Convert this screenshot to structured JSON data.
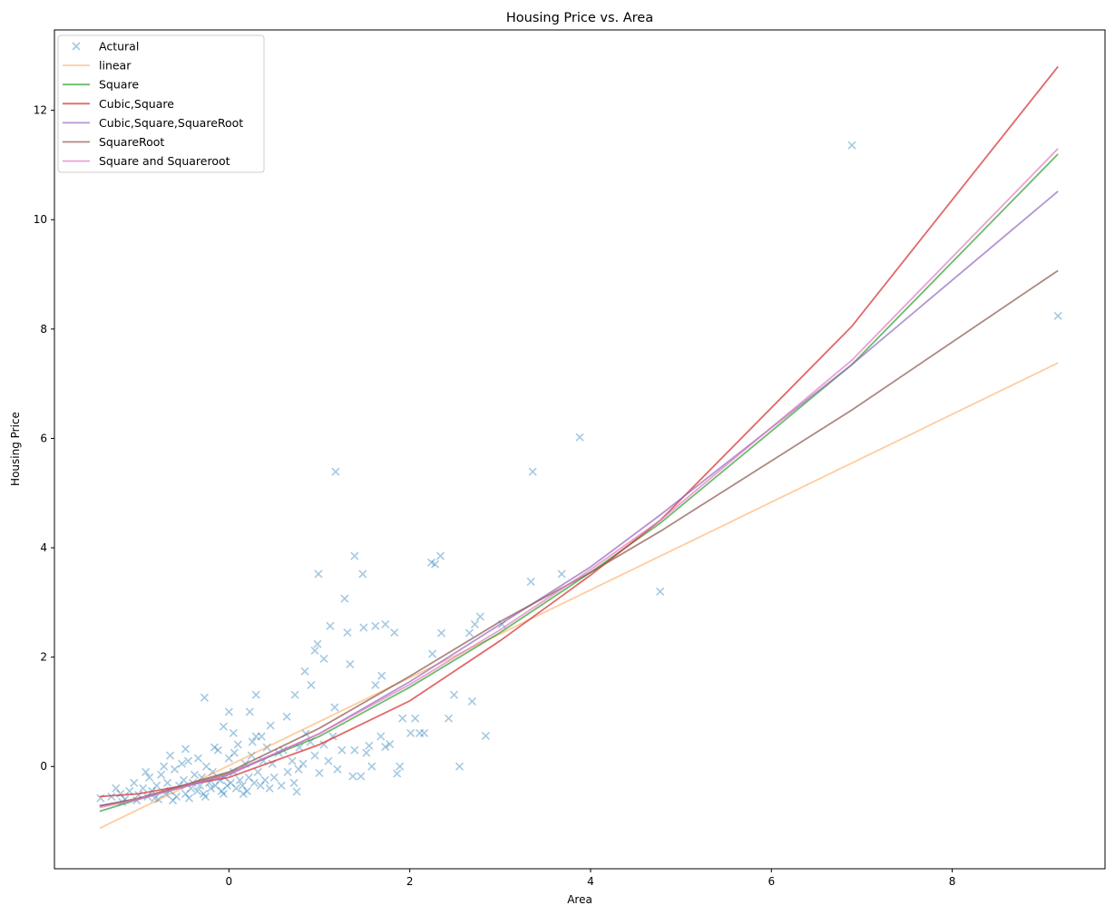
{
  "chart_data": {
    "type": "scatter",
    "title": "Housing Price vs. Area",
    "xlabel": "Area",
    "ylabel": "Housing Price",
    "xlim": [
      -1.93,
      9.69
    ],
    "ylim": [
      -1.87,
      13.47
    ],
    "xticks": [
      0,
      2,
      4,
      6,
      8
    ],
    "yticks": [
      0,
      2,
      4,
      6,
      8,
      10,
      12
    ],
    "grid": false,
    "legend_position": "top-left",
    "scatter": {
      "name": "Actural",
      "color": "#1f77b4",
      "marker": "x",
      "points": [
        [
          6.89,
          11.36
        ],
        [
          9.17,
          8.24
        ],
        [
          3.88,
          6.02
        ],
        [
          3.36,
          5.39
        ],
        [
          1.18,
          5.39
        ],
        [
          4.77,
          3.2
        ],
        [
          1.39,
          3.85
        ],
        [
          2.34,
          3.85
        ],
        [
          2.24,
          3.73
        ],
        [
          2.28,
          3.7
        ],
        [
          0.99,
          3.52
        ],
        [
          1.48,
          3.52
        ],
        [
          3.68,
          3.52
        ],
        [
          3.34,
          3.38
        ],
        [
          1.28,
          3.07
        ],
        [
          1.12,
          2.57
        ],
        [
          1.31,
          2.45
        ],
        [
          1.49,
          2.54
        ],
        [
          1.62,
          2.57
        ],
        [
          1.73,
          2.6
        ],
        [
          1.83,
          2.45
        ],
        [
          2.35,
          2.44
        ],
        [
          2.66,
          2.44
        ],
        [
          2.72,
          2.6
        ],
        [
          2.78,
          2.74
        ],
        [
          3.02,
          2.6
        ],
        [
          0.98,
          2.24
        ],
        [
          0.95,
          2.12
        ],
        [
          1.05,
          1.97
        ],
        [
          1.34,
          1.87
        ],
        [
          2.25,
          2.06
        ],
        [
          0.84,
          1.74
        ],
        [
          1.69,
          1.66
        ],
        [
          1.62,
          1.49
        ],
        [
          0.91,
          1.49
        ],
        [
          2.69,
          1.19
        ],
        [
          2.49,
          1.31
        ],
        [
          -0.27,
          1.26
        ],
        [
          0.3,
          1.31
        ],
        [
          0.73,
          1.31
        ],
        [
          1.17,
          1.08
        ],
        [
          0,
          1.0
        ],
        [
          0.23,
          1.0
        ],
        [
          0.64,
          0.91
        ],
        [
          1.92,
          0.88
        ],
        [
          2.06,
          0.88
        ],
        [
          2.43,
          0.88
        ],
        [
          2.84,
          0.56
        ],
        [
          2.11,
          0.61
        ],
        [
          2.16,
          0.61
        ],
        [
          2.01,
          0.61
        ],
        [
          1.68,
          0.55
        ],
        [
          1.73,
          0.36
        ],
        [
          1.78,
          0.41
        ],
        [
          1.55,
          0.38
        ],
        [
          1.52,
          0.25
        ],
        [
          1.39,
          0.3
        ],
        [
          1.25,
          0.3
        ],
        [
          1.58,
          0.0
        ],
        [
          2.55,
          0.0
        ],
        [
          1.89,
          0.0
        ],
        [
          1.86,
          -0.13
        ],
        [
          1.37,
          -0.18
        ],
        [
          1.46,
          -0.18
        ],
        [
          1.0,
          -0.12
        ],
        [
          0.77,
          -0.05
        ],
        [
          0.75,
          -0.46
        ],
        [
          0.05,
          0.61
        ],
        [
          -0.06,
          0.73
        ],
        [
          0.46,
          0.75
        ],
        [
          -0.48,
          0.32
        ],
        [
          -0.65,
          0.2
        ],
        [
          -1.42,
          -0.58
        ],
        [
          -1.3,
          -0.55
        ],
        [
          -1.2,
          -0.5
        ],
        [
          -1.15,
          -0.6
        ],
        [
          -1.1,
          -0.45
        ],
        [
          -1.05,
          -0.3
        ],
        [
          -1.0,
          -0.52
        ],
        [
          -0.95,
          -0.4
        ],
        [
          -0.9,
          -0.55
        ],
        [
          -0.88,
          -0.2
        ],
        [
          -0.85,
          -0.45
        ],
        [
          -0.8,
          -0.35
        ],
        [
          -0.78,
          -0.6
        ],
        [
          -0.75,
          -0.15
        ],
        [
          -0.7,
          -0.5
        ],
        [
          -0.68,
          -0.3
        ],
        [
          -0.65,
          -0.45
        ],
        [
          -0.6,
          -0.05
        ],
        [
          -0.58,
          -0.55
        ],
        [
          -0.55,
          -0.35
        ],
        [
          -0.5,
          -0.25
        ],
        [
          -0.48,
          -0.5
        ],
        [
          -0.45,
          0.1
        ],
        [
          -0.42,
          -0.4
        ],
        [
          -0.4,
          -0.3
        ],
        [
          -0.38,
          -0.15
        ],
        [
          -0.35,
          -0.45
        ],
        [
          -0.32,
          -0.35
        ],
        [
          -0.3,
          -0.2
        ],
        [
          -0.28,
          -0.5
        ],
        [
          -0.25,
          0.0
        ],
        [
          -0.22,
          -0.3
        ],
        [
          -0.2,
          -0.4
        ],
        [
          -0.18,
          -0.1
        ],
        [
          -0.15,
          -0.35
        ],
        [
          -0.12,
          0.3
        ],
        [
          -0.1,
          -0.25
        ],
        [
          -0.08,
          -0.45
        ],
        [
          -0.05,
          -0.2
        ],
        [
          -0.02,
          -0.35
        ],
        [
          0.0,
          0.15
        ],
        [
          0.02,
          -0.3
        ],
        [
          0.05,
          -0.1
        ],
        [
          0.08,
          -0.4
        ],
        [
          0.1,
          0.4
        ],
        [
          0.12,
          -0.25
        ],
        [
          0.15,
          -0.35
        ],
        [
          0.18,
          0.05
        ],
        [
          0.2,
          -0.45
        ],
        [
          0.22,
          -0.2
        ],
        [
          0.25,
          0.2
        ],
        [
          0.28,
          -0.3
        ],
        [
          0.3,
          0.55
        ],
        [
          0.32,
          -0.1
        ],
        [
          0.35,
          -0.35
        ],
        [
          0.38,
          0.1
        ],
        [
          0.4,
          -0.25
        ],
        [
          0.42,
          0.35
        ],
        [
          0.45,
          -0.4
        ],
        [
          0.48,
          0.05
        ],
        [
          0.5,
          -0.2
        ],
        [
          0.55,
          0.25
        ],
        [
          0.58,
          -0.35
        ],
        [
          0.6,
          0.3
        ],
        [
          0.65,
          -0.1
        ],
        [
          0.7,
          0.1
        ],
        [
          0.72,
          -0.3
        ],
        [
          0.78,
          0.35
        ],
        [
          0.82,
          0.05
        ],
        [
          0.85,
          0.6
        ],
        [
          0.9,
          0.45
        ],
        [
          0.95,
          0.2
        ],
        [
          1.05,
          0.4
        ],
        [
          1.1,
          0.1
        ],
        [
          1.15,
          0.55
        ],
        [
          1.2,
          -0.05
        ],
        [
          -1.25,
          -0.4
        ],
        [
          -1.18,
          -0.65
        ],
        [
          -1.02,
          -0.62
        ],
        [
          -0.92,
          -0.1
        ],
        [
          -0.82,
          -0.58
        ],
        [
          -0.72,
          0.0
        ],
        [
          -0.62,
          -0.62
        ],
        [
          -0.52,
          0.05
        ],
        [
          -0.44,
          -0.58
        ],
        [
          -0.34,
          0.15
        ],
        [
          -0.26,
          -0.55
        ],
        [
          -0.16,
          0.35
        ],
        [
          -0.06,
          -0.5
        ],
        [
          0.06,
          0.25
        ],
        [
          0.16,
          -0.5
        ],
        [
          0.26,
          0.45
        ],
        [
          0.36,
          0.55
        ]
      ]
    },
    "series": [
      {
        "name": "linear",
        "color": "#ff7f0e",
        "alpha": 0.4,
        "points": [
          [
            -1.43,
            -1.13
          ],
          [
            9.17,
            7.38
          ]
        ]
      },
      {
        "name": "Square",
        "color": "#2ca02c",
        "alpha": 0.7,
        "points": [
          [
            -1.43,
            -0.82
          ],
          [
            -1,
            -0.6
          ],
          [
            0,
            -0.12
          ],
          [
            1,
            0.55
          ],
          [
            2,
            1.45
          ],
          [
            3,
            2.45
          ],
          [
            4,
            3.55
          ],
          [
            4.77,
            4.45
          ],
          [
            6.89,
            7.35
          ],
          [
            9.17,
            11.2
          ]
        ]
      },
      {
        "name": "Cubic,Square",
        "color": "#d62728",
        "alpha": 0.7,
        "points": [
          [
            -1.43,
            -0.55
          ],
          [
            -1,
            -0.5
          ],
          [
            0,
            -0.2
          ],
          [
            1,
            0.4
          ],
          [
            2,
            1.2
          ],
          [
            3,
            2.3
          ],
          [
            4,
            3.5
          ],
          [
            4.77,
            4.5
          ],
          [
            6.89,
            8.05
          ],
          [
            9.17,
            12.8
          ]
        ]
      },
      {
        "name": "Cubic,Square,SquareRoot",
        "color": "#9467bd",
        "alpha": 0.7,
        "points": [
          [
            -1.43,
            -0.72
          ],
          [
            -1,
            -0.6
          ],
          [
            0,
            -0.15
          ],
          [
            1,
            0.6
          ],
          [
            2,
            1.55
          ],
          [
            3,
            2.6
          ],
          [
            4,
            3.65
          ],
          [
            4.77,
            4.6
          ],
          [
            6.89,
            7.35
          ],
          [
            9.17,
            10.52
          ]
        ]
      },
      {
        "name": "SquareRoot",
        "color": "#8c564b",
        "alpha": 0.7,
        "points": [
          [
            -1.43,
            -0.72
          ],
          [
            -1,
            -0.58
          ],
          [
            0,
            -0.1
          ],
          [
            1,
            0.7
          ],
          [
            2,
            1.65
          ],
          [
            3,
            2.65
          ],
          [
            4,
            3.55
          ],
          [
            4.77,
            4.3
          ],
          [
            6.89,
            6.52
          ],
          [
            9.17,
            9.07
          ]
        ]
      },
      {
        "name": "Square and Squareroot",
        "color": "#e377c2",
        "alpha": 0.7,
        "points": [
          [
            -1.43,
            -0.75
          ],
          [
            -1,
            -0.6
          ],
          [
            0,
            -0.13
          ],
          [
            1,
            0.6
          ],
          [
            2,
            1.5
          ],
          [
            3,
            2.5
          ],
          [
            4,
            3.6
          ],
          [
            4.77,
            4.5
          ],
          [
            6.89,
            7.43
          ],
          [
            9.17,
            11.3
          ]
        ]
      }
    ]
  }
}
